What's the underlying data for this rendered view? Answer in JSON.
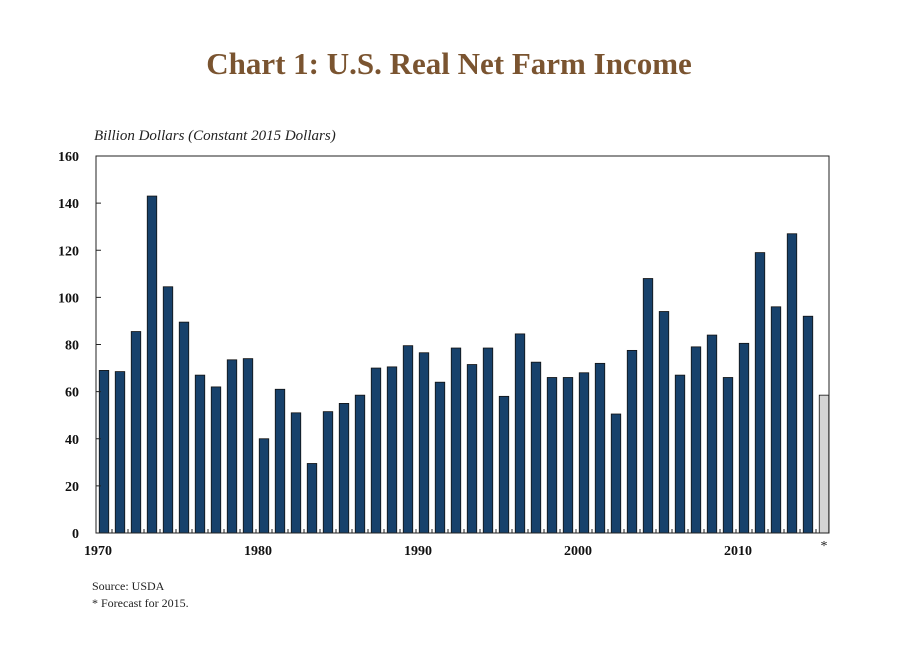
{
  "chart_data": {
    "type": "bar",
    "title": "Chart 1: U.S. Real Net Farm Income",
    "ylabel": "Billion Dollars (Constant 2015 Dollars)",
    "xlabel": "",
    "ylim": [
      0,
      160
    ],
    "yticks": [
      0,
      20,
      40,
      60,
      80,
      100,
      120,
      140,
      160
    ],
    "xtick_labels": [
      "1970",
      "1980",
      "1990",
      "2000",
      "2010"
    ],
    "x": [
      1970,
      1971,
      1972,
      1973,
      1974,
      1975,
      1976,
      1977,
      1978,
      1979,
      1980,
      1981,
      1982,
      1983,
      1984,
      1985,
      1986,
      1987,
      1988,
      1989,
      1990,
      1991,
      1992,
      1993,
      1994,
      1995,
      1996,
      1997,
      1998,
      1999,
      2000,
      2001,
      2002,
      2003,
      2004,
      2005,
      2006,
      2007,
      2008,
      2009,
      2010,
      2011,
      2012,
      2013,
      2014,
      2015
    ],
    "values": [
      69,
      68.5,
      85.5,
      143,
      104.5,
      89.5,
      67,
      62,
      73.5,
      74,
      40,
      61,
      51,
      29.5,
      51.5,
      55,
      58.5,
      70,
      70.5,
      79.5,
      76.5,
      64,
      78.5,
      71.5,
      78.5,
      58,
      84.5,
      72.5,
      66,
      66,
      68,
      72,
      50.5,
      77.5,
      108,
      94,
      67,
      79,
      84,
      66,
      80.5,
      119,
      96,
      127,
      92,
      58.5
    ],
    "forecast_marker": "*",
    "colors": {
      "actual": "#17416b",
      "forecast": "#d4d4d4",
      "title": "#7a5430"
    },
    "grid": false
  },
  "notes": {
    "source": "Source: USDA",
    "forecast": "* Forecast for 2015."
  }
}
